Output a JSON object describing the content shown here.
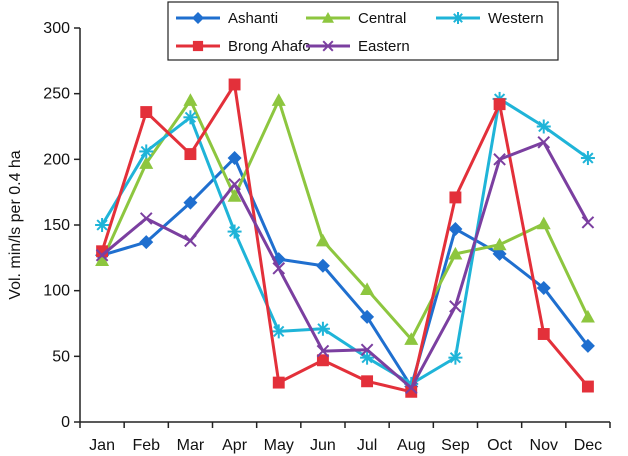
{
  "chart_data": {
    "type": "line",
    "title": "",
    "xlabel": "",
    "ylabel": "Vol. min/ls per 0.4 ha",
    "ylim": [
      0,
      300
    ],
    "yticks": [
      0,
      50,
      100,
      150,
      200,
      250,
      300
    ],
    "categories": [
      "Jan",
      "Feb",
      "Mar",
      "Apr",
      "May",
      "Jun",
      "Jul",
      "Aug",
      "Sep",
      "Oct",
      "Nov",
      "Dec"
    ],
    "legend_position": "top",
    "series": [
      {
        "name": "Ashanti",
        "color": "#1f6fcf",
        "marker": "diamond",
        "values": [
          127,
          137,
          167,
          201,
          124,
          119,
          80,
          27,
          147,
          128,
          102,
          58
        ]
      },
      {
        "name": "Central",
        "color": "#8dc63f",
        "marker": "triangle",
        "values": [
          123,
          197,
          245,
          172,
          245,
          138,
          101,
          63,
          128,
          135,
          151,
          80
        ]
      },
      {
        "name": "Western",
        "color": "#1fb4d8",
        "marker": "asterisk",
        "values": [
          150,
          206,
          232,
          145,
          69,
          71,
          49,
          29,
          49,
          246,
          225,
          201
        ]
      },
      {
        "name": "Brong Ahafo",
        "color": "#e3303a",
        "marker": "square",
        "values": [
          130,
          236,
          204,
          257,
          30,
          47,
          31,
          23,
          171,
          242,
          67,
          27
        ]
      },
      {
        "name": "Eastern",
        "color": "#7b3fa0",
        "marker": "x",
        "values": [
          127,
          155,
          138,
          181,
          117,
          54,
          55,
          26,
          88,
          200,
          213,
          152
        ]
      }
    ]
  }
}
